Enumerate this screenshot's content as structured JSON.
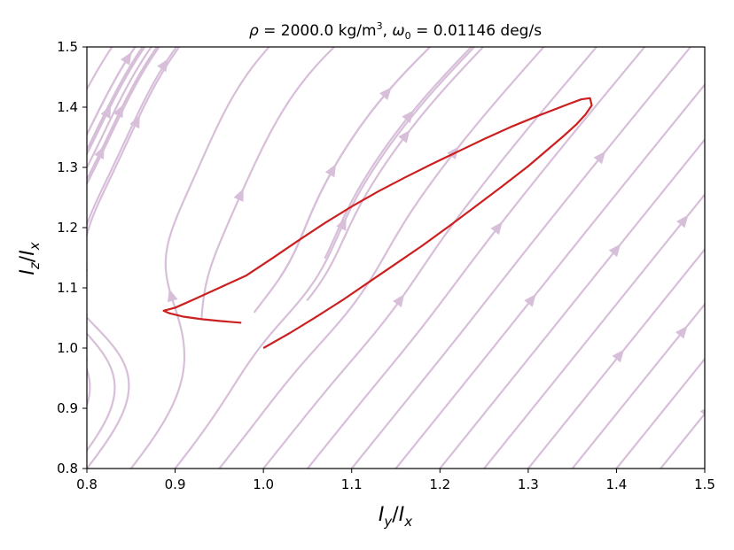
{
  "chart_data": {
    "type": "line",
    "title_parts": {
      "rho": "ρ",
      "eq1": " = 2000.0 kg/m",
      "sup3": "3",
      "comma": ", ",
      "omega": "ω",
      "sub0": "0",
      "eq2": " = 0.01146 deg/s"
    },
    "xlabel": {
      "num": "I",
      "num_sub": "y",
      "slash": "/",
      "den": "I",
      "den_sub": "x"
    },
    "ylabel": {
      "num": "I",
      "num_sub": "z",
      "slash": "/",
      "den": "I",
      "den_sub": "x"
    },
    "xlim": [
      0.8,
      1.5
    ],
    "ylim": [
      0.8,
      1.5
    ],
    "xticks": [
      "0.8",
      "0.9",
      "1.0",
      "1.1",
      "1.2",
      "1.3",
      "1.4",
      "1.5"
    ],
    "yticks": [
      "0.8",
      "0.9",
      "1.0",
      "1.1",
      "1.2",
      "1.3",
      "1.4",
      "1.5"
    ],
    "grid": false,
    "streamline_color": "#d7bfd9",
    "series": [
      {
        "color": "#cc1f1f",
        "x": [
          1.0,
          1.03,
          1.06,
          1.09,
          1.12,
          1.15,
          1.18,
          1.21,
          1.24,
          1.27,
          1.3,
          1.32,
          1.34,
          1.355,
          1.365,
          1.372,
          1.37,
          1.36,
          1.34,
          1.31,
          1.28,
          1.25,
          1.22,
          1.19,
          1.16,
          1.13,
          1.1,
          1.07,
          1.04,
          1.01,
          0.98,
          0.95,
          0.92,
          0.9,
          0.887,
          0.893,
          0.91,
          0.93,
          0.95,
          0.975
        ],
        "y": [
          1.0,
          1.025,
          1.052,
          1.08,
          1.11,
          1.14,
          1.17,
          1.202,
          1.235,
          1.268,
          1.302,
          1.327,
          1.352,
          1.372,
          1.388,
          1.403,
          1.415,
          1.413,
          1.402,
          1.385,
          1.367,
          1.347,
          1.326,
          1.305,
          1.283,
          1.26,
          1.235,
          1.208,
          1.179,
          1.149,
          1.12,
          1.1,
          1.08,
          1.067,
          1.062,
          1.058,
          1.052,
          1.048,
          1.045,
          1.042
        ]
      }
    ]
  }
}
